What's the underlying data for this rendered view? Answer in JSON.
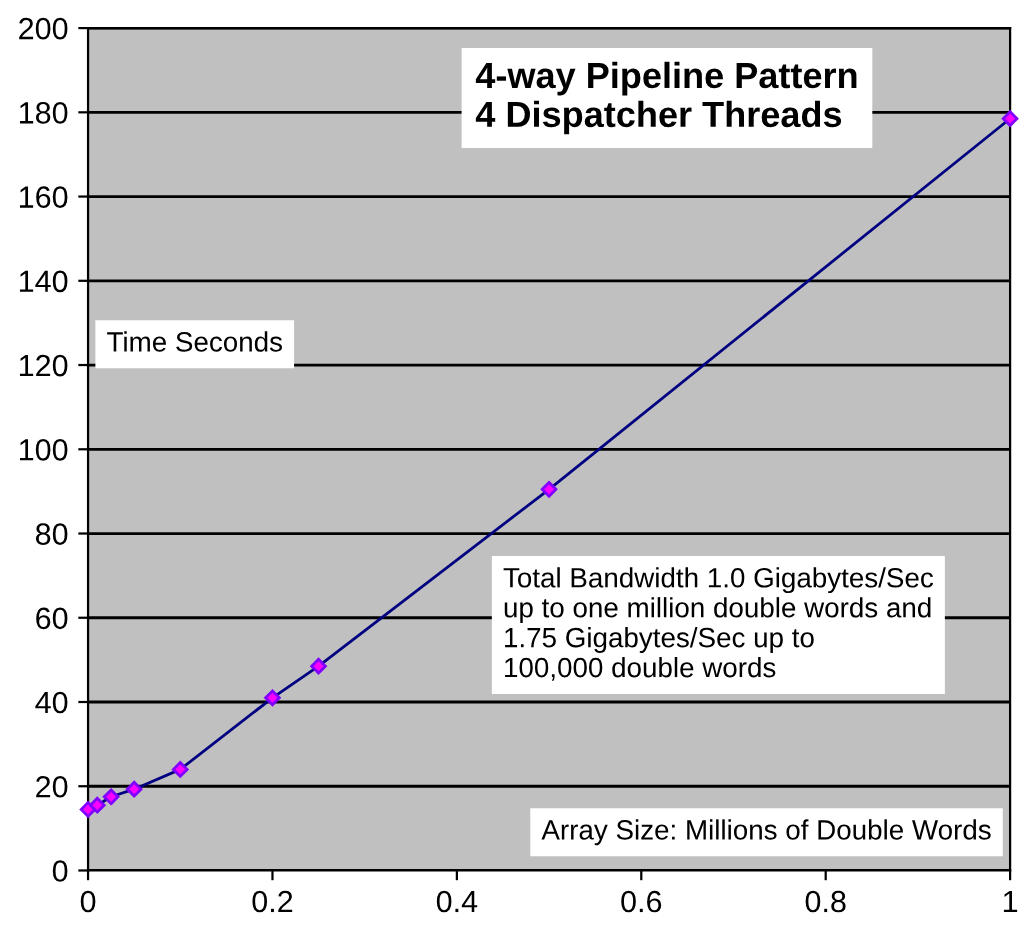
{
  "chart_data": {
    "type": "line",
    "title": "4-way Pipeline Pattern\n4 Dispatcher Threads",
    "x": [
      0,
      0.01,
      0.025,
      0.05,
      0.1,
      0.2,
      0.25,
      0.5,
      1.0
    ],
    "series": [
      {
        "color": "#000080",
        "values": [
          14.5,
          15.5,
          17.5,
          19.3,
          24,
          41,
          48.5,
          90.5,
          178.5
        ]
      }
    ],
    "marker": "diamond",
    "grid": "y",
    "xlim": [
      0,
      1
    ],
    "xticks": [
      0,
      0.2,
      0.4,
      0.6,
      0.8,
      1
    ],
    "ylim": [
      0,
      200
    ],
    "yticks": [
      0,
      20,
      40,
      60,
      80,
      100,
      120,
      140,
      160,
      180,
      200
    ],
    "annotations": [
      "Time Seconds",
      "Total Bandwidth 1.0 Gigabytes/Sec\nup to one million double words and\n1.75 Gigabytes/Sec up to\n100,000 double words",
      "Array Size: Millions of Double Words"
    ]
  }
}
